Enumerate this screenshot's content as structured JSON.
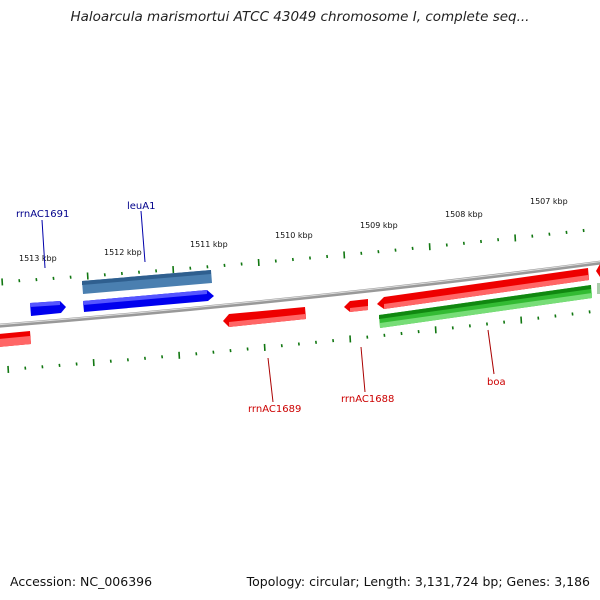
{
  "title": "Haloarcula marismortui ATCC 43049 chromosome I, complete seq...",
  "footer": {
    "accession": "Accession: NC_006396",
    "topology": "Topology: circular; Length: 3,131,724 bp; Genes: 3,186"
  },
  "ticks": [
    "1513 kbp",
    "1512 kbp",
    "1511 kbp",
    "1510 kbp",
    "1509 kbp",
    "1508 kbp",
    "1507 kbp"
  ],
  "genes": {
    "rrnAC1691": "rrnAC1691",
    "leuA1": "leuA1",
    "rrnAC1689": "rrnAC1689",
    "rrnAC1688": "rrnAC1688",
    "boa": "boa"
  },
  "colors": {
    "blue": "#0000ee",
    "steel": "#4a7fb0",
    "red": "#ee0000",
    "green": "#33bb33",
    "tick": "#117711",
    "backbone": "#888888"
  }
}
